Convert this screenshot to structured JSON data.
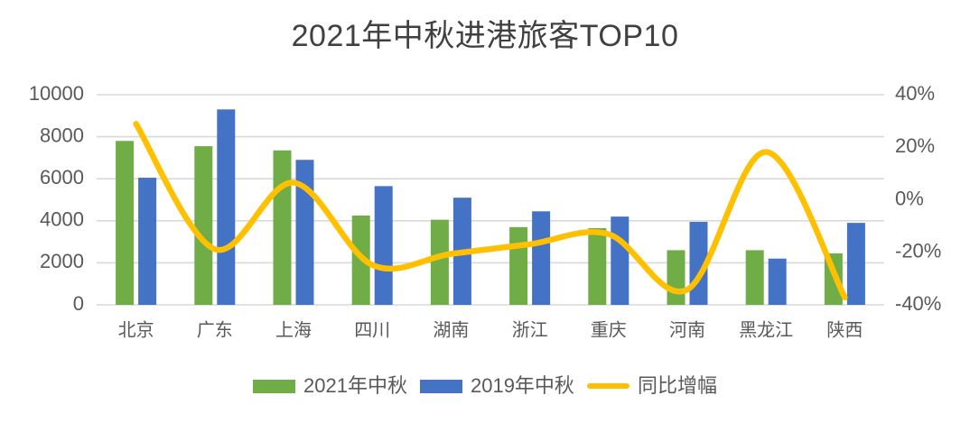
{
  "chart_data": {
    "type": "combo",
    "title": "2021年中秋进港旅客TOP10",
    "categories": [
      "北京",
      "广东",
      "上海",
      "四川",
      "湖南",
      "浙江",
      "重庆",
      "河南",
      "黑龙江",
      "陕西"
    ],
    "series": [
      {
        "name": "2021年中秋",
        "type": "bar",
        "axis": "left",
        "color": "#70AD47",
        "values": [
          7800,
          7550,
          7350,
          4250,
          4050,
          3700,
          3650,
          2600,
          2600,
          2450
        ]
      },
      {
        "name": "2019年中秋",
        "type": "bar",
        "axis": "left",
        "color": "#4472C4",
        "values": [
          6050,
          9300,
          6900,
          5650,
          5100,
          4450,
          4200,
          3950,
          2200,
          3900
        ]
      },
      {
        "name": "同比增幅",
        "type": "line",
        "axis": "right",
        "color": "#FFC000",
        "unit": "%",
        "smooth": true,
        "values": [
          28.9,
          -18.8,
          6.5,
          -24.8,
          -20.6,
          -16.9,
          -13.1,
          -34.2,
          18.2,
          -37.2
        ]
      }
    ],
    "left_axis": {
      "min": 0,
      "max": 10000,
      "ticks": [
        "0",
        "2000",
        "4000",
        "6000",
        "8000",
        "10000"
      ]
    },
    "right_axis": {
      "min": -40,
      "max": 40,
      "ticks_top_down": [
        "40%",
        "20%",
        "0%",
        "-20%",
        "-40%"
      ]
    },
    "legend": {
      "position": "bottom",
      "entries": [
        "2021年中秋",
        "2019年中秋",
        "同比增幅"
      ]
    },
    "grid": "horizontal",
    "xlabel": "",
    "ylabel": ""
  },
  "colors": {
    "gridline": "#D9D9D9",
    "axis_text": "#595959",
    "title_text": "#404040",
    "background": "#FFFFFF"
  }
}
